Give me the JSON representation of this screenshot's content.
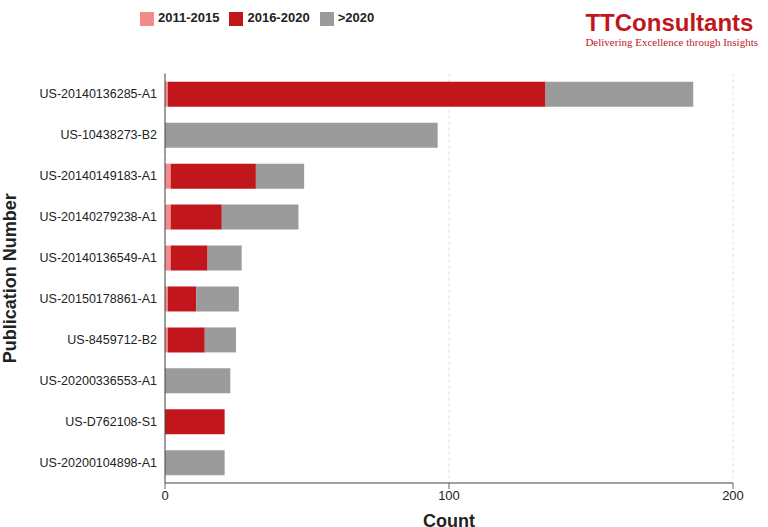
{
  "chart_data": {
    "type": "bar",
    "orientation": "horizontal",
    "stacked": true,
    "grid": true,
    "legend": "top",
    "x_label": "Count",
    "y_label": "Publication Number",
    "annotations": [
      "TTConsultants",
      "Delivering Excellence through Insights"
    ],
    "categories": [
      "US-20140136285-A1",
      "US-10438273-B2",
      "US-20140149183-A1",
      "US-20140279238-A1",
      "US-20140136549-A1",
      "US-20150178861-A1",
      "US-8459712-B2",
      "US-20200336553-A1",
      "US-D762108-S1",
      "US-20200104898-A1"
    ],
    "series": [
      {
        "name": "2011-2015",
        "color": "#f28b8b",
        "values": [
          1,
          0,
          2,
          2,
          2,
          1,
          1,
          0,
          0,
          0
        ]
      },
      {
        "name": "2016-2020",
        "color": "#c1161c",
        "values": [
          133,
          0,
          30,
          18,
          13,
          10,
          13,
          0,
          21,
          0
        ]
      },
      {
        "name": ">2020",
        "color": "#9b9b9b",
        "values": [
          52,
          96,
          17,
          27,
          12,
          15,
          11,
          23,
          0,
          21
        ]
      }
    ],
    "xlim": [
      0,
      200
    ],
    "xticks": [
      0,
      100,
      200
    ]
  }
}
